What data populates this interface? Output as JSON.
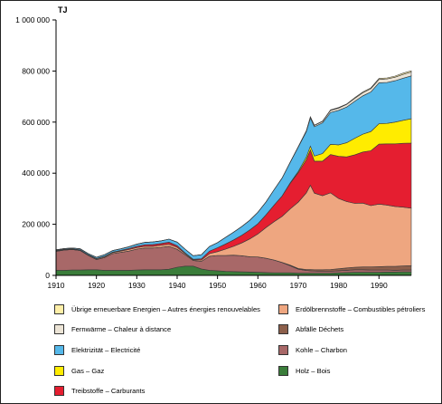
{
  "chart_data": {
    "type": "area",
    "stacked": true,
    "unit": "TJ",
    "xlim": [
      1910,
      1998
    ],
    "ylim": [
      0,
      1000000
    ],
    "y_ticks": [
      0,
      200000,
      400000,
      600000,
      800000,
      1000000
    ],
    "y_tick_labels": [
      "0",
      "200 000",
      "400 000",
      "600 000",
      "800 000",
      "1 000 000"
    ],
    "x_ticks": [
      1910,
      1920,
      1930,
      1940,
      1950,
      1960,
      1970,
      1980,
      1990
    ],
    "x_tick_labels": [
      "1910",
      "1920",
      "1930",
      "1940",
      "1950",
      "1960",
      "1970",
      "1980",
      "1990"
    ],
    "grid": false,
    "x": [
      1910,
      1912,
      1914,
      1916,
      1918,
      1920,
      1922,
      1924,
      1926,
      1928,
      1930,
      1932,
      1934,
      1936,
      1938,
      1940,
      1942,
      1944,
      1946,
      1948,
      1950,
      1952,
      1954,
      1956,
      1958,
      1960,
      1962,
      1964,
      1966,
      1968,
      1970,
      1972,
      1973,
      1974,
      1976,
      1978,
      1980,
      1982,
      1984,
      1986,
      1988,
      1990,
      1992,
      1994,
      1996,
      1998
    ],
    "series": [
      {
        "name": "Holz – Bois",
        "color": "#3a7d3a",
        "values": [
          20000,
          20000,
          21000,
          21000,
          22000,
          22000,
          20000,
          20000,
          20000,
          20000,
          21000,
          22000,
          22000,
          22000,
          24000,
          32000,
          36000,
          36000,
          25000,
          20000,
          18000,
          16000,
          15000,
          14000,
          13000,
          12000,
          11000,
          10000,
          10000,
          10000,
          9000,
          9000,
          9000,
          9000,
          9000,
          9000,
          10000,
          11000,
          12000,
          12000,
          12000,
          12000,
          13000,
          13000,
          14000,
          14000
        ]
      },
      {
        "name": "Kohle – Charbon",
        "color": "#a86868",
        "values": [
          74000,
          79000,
          80000,
          76000,
          56000,
          40000,
          50000,
          65000,
          70000,
          75000,
          82000,
          85000,
          85000,
          88000,
          90000,
          70000,
          45000,
          22000,
          30000,
          55000,
          60000,
          62000,
          64000,
          63000,
          60000,
          60000,
          56000,
          50000,
          40000,
          28000,
          15000,
          10000,
          9000,
          8000,
          7000,
          7000,
          8000,
          9000,
          10000,
          10000,
          9000,
          9000,
          8000,
          7000,
          7000,
          7000
        ]
      },
      {
        "name": "Abfälle Déchets",
        "color": "#8c5f4b",
        "values": [
          0,
          0,
          0,
          0,
          0,
          0,
          0,
          0,
          0,
          0,
          0,
          0,
          0,
          0,
          0,
          0,
          0,
          0,
          0,
          0,
          0,
          0,
          0,
          0,
          0,
          0,
          0,
          0,
          1000,
          2000,
          3000,
          4000,
          5000,
          5000,
          6000,
          7000,
          8000,
          9000,
          10000,
          11000,
          12000,
          13000,
          14000,
          15000,
          16000,
          17000
        ]
      },
      {
        "name": "Erdölbrennstoffe – Combustibles pétroliers",
        "color": "#eea680",
        "values": [
          2000,
          2000,
          2000,
          2000,
          2000,
          3000,
          3000,
          4000,
          5000,
          6000,
          6000,
          7000,
          7000,
          8000,
          8000,
          8000,
          4000,
          3000,
          5000,
          10000,
          15000,
          25000,
          35000,
          50000,
          70000,
          90000,
          120000,
          150000,
          180000,
          220000,
          260000,
          300000,
          330000,
          300000,
          290000,
          300000,
          275000,
          260000,
          250000,
          250000,
          240000,
          245000,
          240000,
          235000,
          230000,
          225000
        ]
      },
      {
        "name": "Treibstoffe – Carburants",
        "color": "#e51e30",
        "values": [
          1000,
          1000,
          1000,
          1000,
          1000,
          1000,
          2000,
          2000,
          3000,
          4000,
          5000,
          6000,
          7000,
          7000,
          8000,
          6000,
          3000,
          2000,
          5000,
          10000,
          15000,
          20000,
          25000,
          30000,
          35000,
          40000,
          50000,
          65000,
          80000,
          100000,
          115000,
          130000,
          138000,
          125000,
          135000,
          150000,
          165000,
          175000,
          190000,
          200000,
          215000,
          235000,
          240000,
          245000,
          250000,
          255000
        ]
      },
      {
        "name": "Gas – Gaz",
        "color": "#ffec00",
        "values": [
          0,
          0,
          0,
          0,
          0,
          0,
          0,
          0,
          0,
          0,
          0,
          0,
          0,
          0,
          0,
          0,
          0,
          0,
          0,
          0,
          0,
          0,
          0,
          0,
          0,
          0,
          0,
          0,
          0,
          2000,
          5000,
          10000,
          15000,
          20000,
          30000,
          40000,
          45000,
          55000,
          65000,
          70000,
          75000,
          80000,
          80000,
          85000,
          90000,
          95000
        ]
      },
      {
        "name": "Elektrizität – Electricité",
        "color": "#55b8ea",
        "values": [
          3000,
          3000,
          3000,
          4000,
          4000,
          5000,
          6000,
          6000,
          6000,
          7000,
          8000,
          9000,
          10000,
          10000,
          12000,
          14000,
          14000,
          14000,
          16000,
          18000,
          20000,
          26000,
          30000,
          34000,
          38000,
          45000,
          50000,
          60000,
          70000,
          80000,
          95000,
          100000,
          110000,
          115000,
          120000,
          125000,
          135000,
          140000,
          145000,
          150000,
          155000,
          160000,
          160000,
          162000,
          165000,
          168000
        ]
      },
      {
        "name": "Fernwärme – Chaleur à distance",
        "color": "#ece4d6",
        "values": [
          0,
          0,
          0,
          0,
          0,
          0,
          0,
          0,
          0,
          0,
          0,
          0,
          0,
          0,
          0,
          0,
          0,
          0,
          0,
          0,
          0,
          0,
          0,
          0,
          0,
          0,
          0,
          0,
          0,
          1000,
          2000,
          3000,
          4000,
          5000,
          6000,
          8000,
          9000,
          10000,
          11000,
          12000,
          13000,
          13000,
          14000,
          14000,
          15000,
          15000
        ]
      },
      {
        "name": "Übrige erneuerbare Energien – Autres énergies renouvelables",
        "color": "#ffefa8",
        "values": [
          0,
          0,
          0,
          0,
          0,
          0,
          0,
          0,
          0,
          0,
          0,
          0,
          0,
          0,
          0,
          0,
          0,
          0,
          0,
          0,
          0,
          0,
          0,
          0,
          0,
          0,
          0,
          0,
          0,
          0,
          0,
          0,
          1000,
          1000,
          1000,
          2000,
          2000,
          2000,
          3000,
          3000,
          3000,
          4000,
          4000,
          4000,
          5000,
          5000
        ]
      }
    ]
  },
  "legend": [
    {
      "label": "Übrige erneuerbare Energien – Autres énergies renouvelables",
      "color": "#ffefa8"
    },
    {
      "label": "Erdölbrennstoffe – Combustibles pétroliers",
      "color": "#eea680"
    },
    {
      "label": "Fernwärme – Chaleur à distance",
      "color": "#ece4d6"
    },
    {
      "label": "Abfälle   Déchets",
      "color": "#8c5f4b"
    },
    {
      "label": "Elektrizität – Electricité",
      "color": "#55b8ea"
    },
    {
      "label": "Kohle – Charbon",
      "color": "#a86868"
    },
    {
      "label": "Gas – Gaz",
      "color": "#ffec00"
    },
    {
      "label": "Holz – Bois",
      "color": "#3a7d3a"
    },
    {
      "label": "Treibstoffe – Carburants",
      "color": "#e51e30"
    }
  ]
}
